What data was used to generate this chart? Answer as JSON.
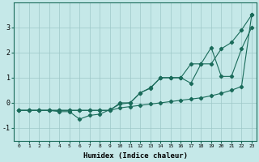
{
  "xlabel": "Humidex (Indice chaleur)",
  "bg_color": "#c5e8e8",
  "grid_color": "#9ec8c8",
  "line_color": "#1a6b5a",
  "xlim": [
    -0.5,
    23.5
  ],
  "ylim": [
    -1.5,
    4.0
  ],
  "x_ticks": [
    0,
    1,
    2,
    3,
    4,
    5,
    6,
    7,
    8,
    9,
    10,
    11,
    12,
    13,
    14,
    15,
    16,
    17,
    18,
    19,
    20,
    21,
    22,
    23
  ],
  "y_ticks": [
    -1,
    0,
    1,
    2,
    3
  ],
  "series": [
    {
      "x": [
        0,
        1,
        2,
        3,
        4,
        5,
        6,
        7,
        8,
        9,
        10,
        11,
        12,
        13,
        14,
        15,
        16,
        17,
        18,
        19,
        20,
        21,
        22,
        23
      ],
      "y": [
        -0.3,
        -0.3,
        -0.3,
        -0.3,
        -0.3,
        -0.3,
        -0.3,
        -0.3,
        -0.3,
        -0.3,
        -0.2,
        -0.15,
        -0.1,
        -0.05,
        0.0,
        0.05,
        0.1,
        0.15,
        0.2,
        0.28,
        0.38,
        0.5,
        0.65,
        3.5
      ]
    },
    {
      "x": [
        0,
        1,
        2,
        3,
        4,
        5,
        6,
        7,
        8,
        9,
        10,
        11,
        12,
        13,
        14,
        15,
        16,
        17,
        18,
        19,
        20,
        21,
        22,
        23
      ],
      "y": [
        -0.3,
        -0.3,
        -0.3,
        -0.3,
        -0.35,
        -0.35,
        -0.65,
        -0.5,
        -0.45,
        -0.27,
        -0.05,
        0.0,
        0.4,
        0.58,
        1.0,
        1.0,
        1.0,
        0.78,
        1.55,
        2.2,
        1.05,
        1.05,
        2.15,
        3.0
      ]
    },
    {
      "x": [
        0,
        1,
        2,
        3,
        4,
        5,
        6,
        7,
        8,
        9,
        10,
        11,
        12,
        13,
        14,
        15,
        16,
        17,
        18,
        19,
        20,
        21,
        22,
        23
      ],
      "y": [
        -0.3,
        -0.3,
        -0.3,
        -0.3,
        -0.3,
        -0.3,
        -0.3,
        -0.3,
        -0.3,
        -0.3,
        0.0,
        0.0,
        0.4,
        0.6,
        1.0,
        1.0,
        1.0,
        1.55,
        1.55,
        1.55,
        2.15,
        2.4,
        2.9,
        3.5
      ]
    }
  ]
}
